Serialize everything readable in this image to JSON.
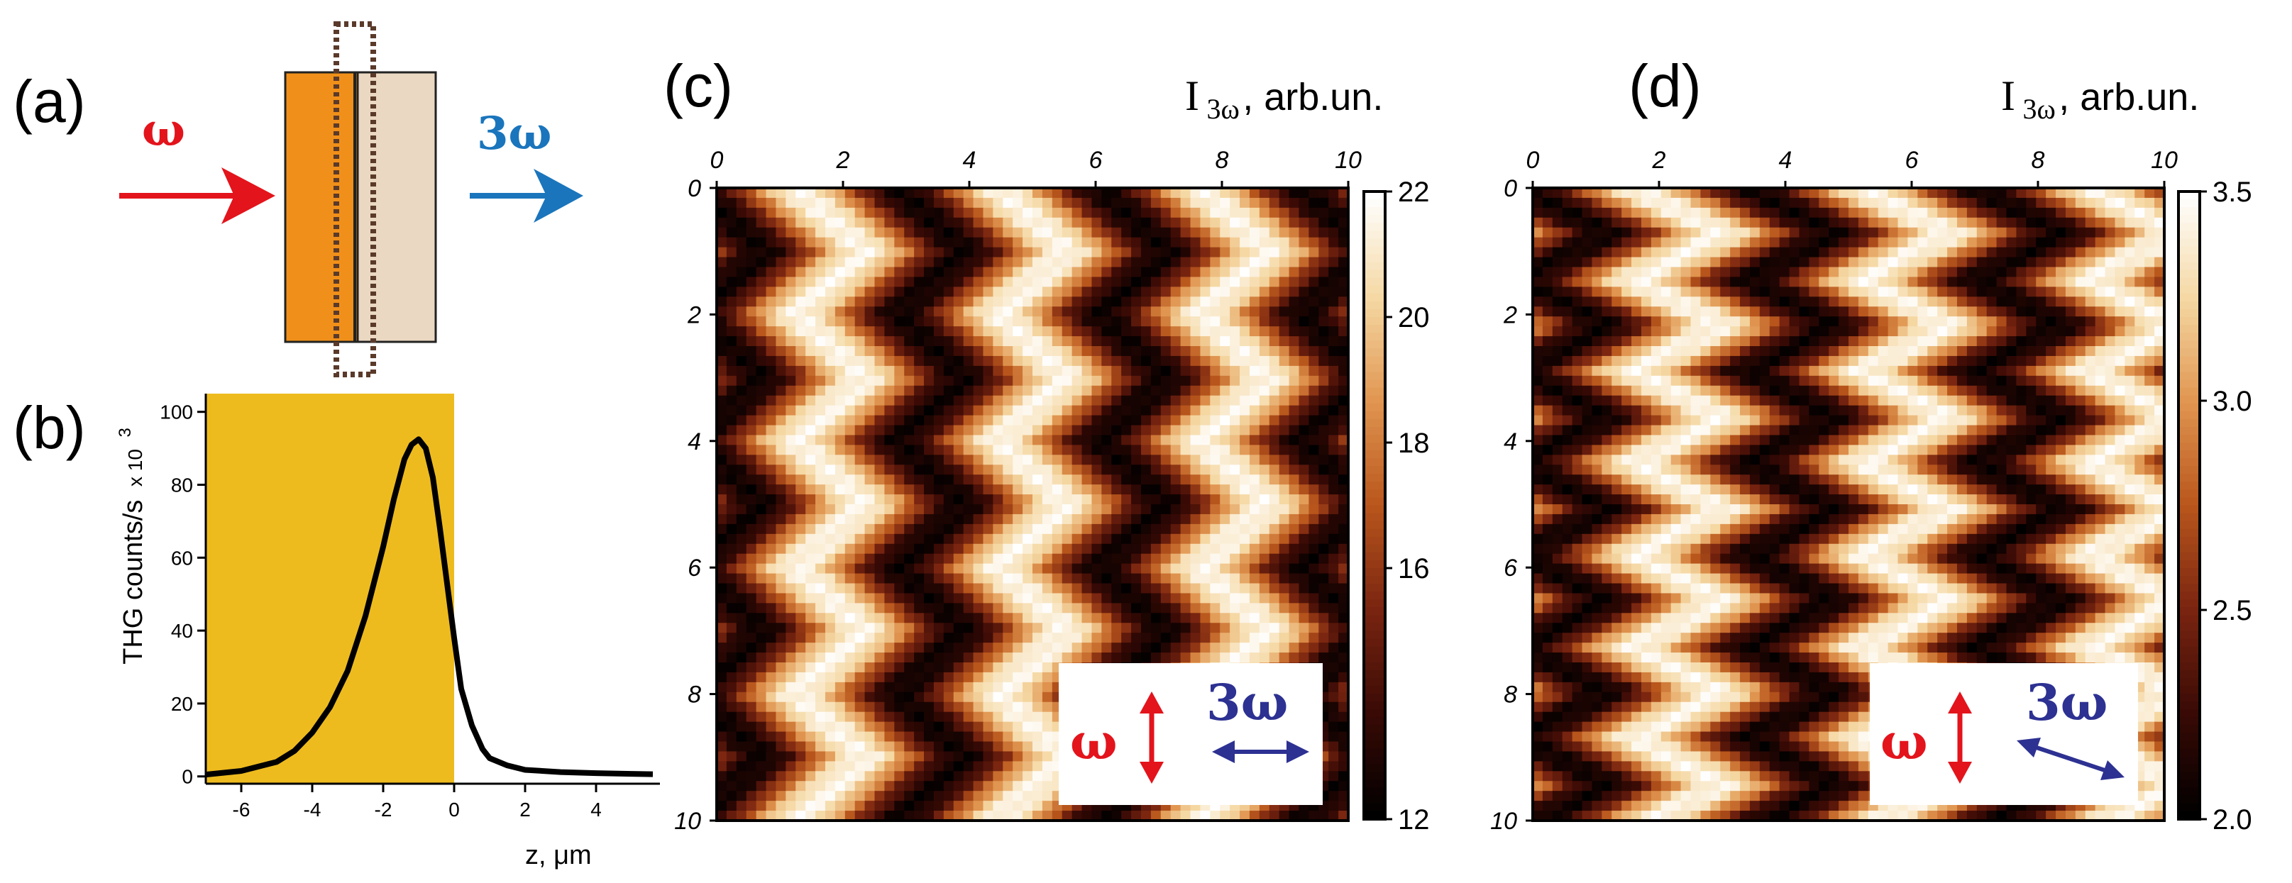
{
  "panel_labels": {
    "a": "(a)",
    "b": "(b)",
    "c": "(c)",
    "d": "(d)"
  },
  "schematic": {
    "input_label": "ω",
    "output_label": "3ω",
    "colors": {
      "input_arrow": "#e3141c",
      "output_arrow": "#1a75bc",
      "layer1": "#f0901a",
      "layer2": "#ead8c2",
      "focus_box": "#5a3a2a"
    }
  },
  "polarization": {
    "input": "ω",
    "output": "3ω",
    "colors": {
      "input": "#e3141c",
      "output": "#2d3192"
    }
  },
  "map_title": {
    "symbol": "I",
    "subscript": "3ω",
    "unit": ", arb.un."
  },
  "chart_data": [
    {
      "id": "b",
      "type": "line",
      "xlabel": "z, μm",
      "ylabel": "THG counts/s",
      "ylabel_scale": "x 10",
      "ylabel_exp": "3",
      "xlim": [
        -7,
        5.8
      ],
      "ylim": [
        -2,
        105
      ],
      "xticks": [
        -6,
        -4,
        -2,
        0,
        2,
        4
      ],
      "yticks": [
        0,
        20,
        40,
        60,
        80,
        100
      ],
      "shaded_region": {
        "x_from": -7,
        "x_to": 0,
        "color": "#eebb1e"
      },
      "series": [
        {
          "color": "#000000",
          "x": [
            -7,
            -6,
            -5,
            -4.5,
            -4,
            -3.5,
            -3,
            -2.5,
            -2,
            -1.7,
            -1.4,
            -1.2,
            -1,
            -0.8,
            -0.6,
            -0.4,
            -0.2,
            0,
            0.2,
            0.5,
            0.8,
            1,
            1.5,
            2,
            3,
            4,
            5,
            5.6
          ],
          "y": [
            0.5,
            1.5,
            4,
            7,
            12,
            19,
            29,
            44,
            63,
            76,
            87,
            91,
            92.5,
            90,
            82,
            68,
            53,
            38,
            24,
            14,
            7.5,
            5,
            3,
            1.8,
            1.2,
            0.9,
            0.7,
            0.6
          ]
        }
      ]
    },
    {
      "id": "c",
      "type": "heatmap",
      "title": "I3ω, arb.un.",
      "xlim": [
        0,
        10
      ],
      "ylim": [
        0,
        10
      ],
      "xticks": [
        0,
        2,
        4,
        6,
        8,
        10
      ],
      "yticks": [
        0,
        2,
        4,
        6,
        8,
        10
      ],
      "colorbar": {
        "min": 12,
        "max": 22,
        "ticks": [
          12,
          16,
          18,
          20,
          22
        ]
      },
      "colormap": [
        "#000000",
        "#3a0a05",
        "#7a2510",
        "#b8561c",
        "#e09550",
        "#f5d8a3",
        "#ffffff"
      ],
      "stripe_period": 3.2,
      "stripe_phase": 1.8,
      "zigzag_amplitude": 0.55,
      "zigzag_period": 2.0
    },
    {
      "id": "d",
      "type": "heatmap",
      "title": "I3ω, arb.un.",
      "xlim": [
        0,
        10
      ],
      "ylim": [
        0,
        10
      ],
      "xticks": [
        0,
        2,
        4,
        6,
        8,
        10
      ],
      "yticks": [
        0,
        2,
        4,
        6,
        8,
        10
      ],
      "colorbar": {
        "min": 2.0,
        "max": 3.5,
        "ticks": [
          2.0,
          2.5,
          3.0,
          3.5
        ]
      },
      "colormap": [
        "#000000",
        "#3a0a05",
        "#7a2510",
        "#b8561c",
        "#e09550",
        "#f5d8a3",
        "#ffffff"
      ],
      "stripe_period": 3.6,
      "stripe_phase": 2.3,
      "zigzag_amplitude": 0.7,
      "zigzag_period": 1.45
    }
  ]
}
